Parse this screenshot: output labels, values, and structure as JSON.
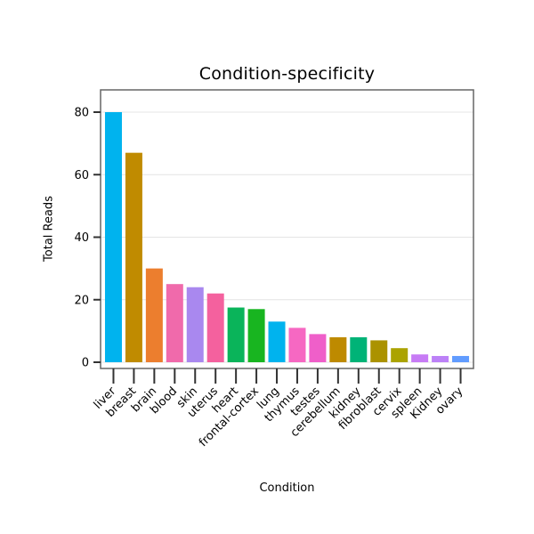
{
  "chart_data": {
    "type": "bar",
    "title": "Condition-specificity",
    "xlabel": "Condition",
    "ylabel": "Total Reads",
    "categories": [
      "liver",
      "breast",
      "brain",
      "blood",
      "skin",
      "uterus",
      "heart",
      "frontal-cortex",
      "lung",
      "thymus",
      "testes",
      "cerebellum",
      "kidney",
      "fibroblast",
      "cervix",
      "spleen",
      "Kidney",
      "ovary"
    ],
    "values": [
      80,
      67,
      30,
      25,
      24,
      22,
      17.5,
      17,
      13,
      11,
      9,
      8,
      8,
      7,
      4.5,
      2.5,
      2,
      2
    ],
    "colors": [
      "#00B3EE",
      "#C08B00",
      "#EC7E2E",
      "#F06AAB",
      "#A988EF",
      "#F4619E",
      "#0AB45A",
      "#18B520",
      "#00B3EE",
      "#F668C2",
      "#EF5FC9",
      "#BE8A00",
      "#00B377",
      "#AB9200",
      "#ABA300",
      "#C77BF5",
      "#BC81F7",
      "#619CFF"
    ],
    "ylim": [
      0,
      80
    ],
    "yticks": [
      0,
      20,
      40,
      60,
      80
    ],
    "grid": true,
    "grid_color": "#e4e4e4",
    "axis_box_color": "#666666",
    "tick_color": "#333333",
    "legend": "none"
  }
}
